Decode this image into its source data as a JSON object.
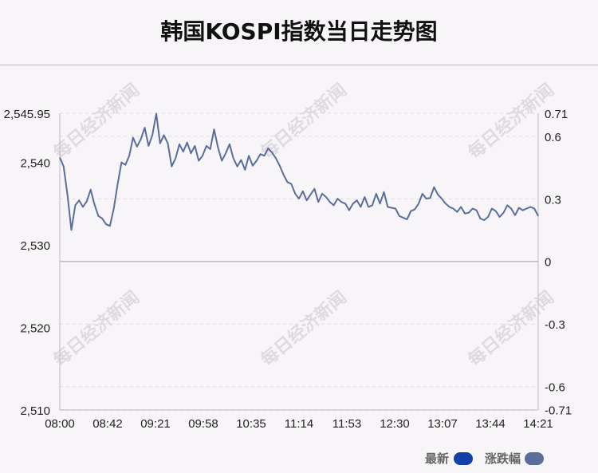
{
  "title": "韩国KOSPI指数当日走势图",
  "watermark": "每日经济新闻",
  "colors": {
    "line": "#5a6e9c",
    "legend_latest": "#1240a8",
    "legend_change": "#5a6e9c",
    "grid": "#dddddd",
    "baseline": "#bbbbbb"
  },
  "legend": [
    {
      "label": "最新"
    },
    {
      "label": "涨跌幅"
    }
  ],
  "chart_data": {
    "type": "line",
    "x_ticks": [
      "08:00",
      "08:42",
      "09:21",
      "09:58",
      "10:35",
      "11:14",
      "11:53",
      "12:30",
      "13:07",
      "13:44",
      "14:21"
    ],
    "y_left_ticks": [
      "2,545.95",
      "2,540",
      "2,530",
      "2,520",
      "2,510"
    ],
    "y_left_tick_values": [
      2545.95,
      2540,
      2530,
      2520,
      2510
    ],
    "y_right_ticks": [
      "0.71",
      "0.6",
      "0.3",
      "0",
      "-0.3",
      "-0.6",
      "-0.71"
    ],
    "y_right_tick_values": [
      0.71,
      0.6,
      0.3,
      0,
      -0.3,
      -0.6,
      -0.71
    ],
    "ylim": [
      2510,
      2545.95
    ],
    "baseline": 2528.0,
    "grid": true,
    "series": [
      {
        "values": [
          2540.6,
          2539.5,
          2536.0,
          2531.8,
          2534.8,
          2535.4,
          2534.6,
          2535.3,
          2536.7,
          2534.9,
          2533.5,
          2533.2,
          2532.5,
          2532.3,
          2534.4,
          2537.4,
          2540.0,
          2539.7,
          2540.8,
          2543.0,
          2541.9,
          2542.8,
          2544.2,
          2542.0,
          2543.3,
          2545.9,
          2542.3,
          2543.3,
          2542.3,
          2539.5,
          2540.5,
          2542.2,
          2541.3,
          2542.4,
          2541.1,
          2542.0,
          2540.2,
          2540.8,
          2542.0,
          2541.6,
          2544.0,
          2541.8,
          2540.2,
          2541.1,
          2542.2,
          2540.5,
          2539.5,
          2540.3,
          2539.1,
          2540.8,
          2539.6,
          2540.2,
          2541.0,
          2540.8,
          2541.7,
          2541.2,
          2540.5,
          2539.6,
          2538.5,
          2537.6,
          2537.4,
          2536.2,
          2535.6,
          2536.5,
          2535.4,
          2536.1,
          2536.8,
          2535.2,
          2536.2,
          2535.8,
          2535.2,
          2534.8,
          2535.6,
          2535.2,
          2535.0,
          2534.2,
          2535.0,
          2535.4,
          2534.6,
          2535.8,
          2534.6,
          2534.8,
          2536.2,
          2535.0,
          2536.4,
          2534.6,
          2534.5,
          2534.4,
          2533.5,
          2533.3,
          2533.1,
          2534.1,
          2534.3,
          2535.0,
          2536.2,
          2535.6,
          2535.7,
          2537.0,
          2536.1,
          2535.6,
          2535.0,
          2534.6,
          2534.4,
          2534.0,
          2534.6,
          2533.8,
          2533.9,
          2534.4,
          2534.2,
          2533.2,
          2533.0,
          2533.4,
          2534.4,
          2534.1,
          2533.4,
          2533.9,
          2534.8,
          2534.4,
          2533.6,
          2534.5,
          2534.2,
          2534.4,
          2534.6,
          2534.4,
          2533.5
        ]
      }
    ]
  }
}
